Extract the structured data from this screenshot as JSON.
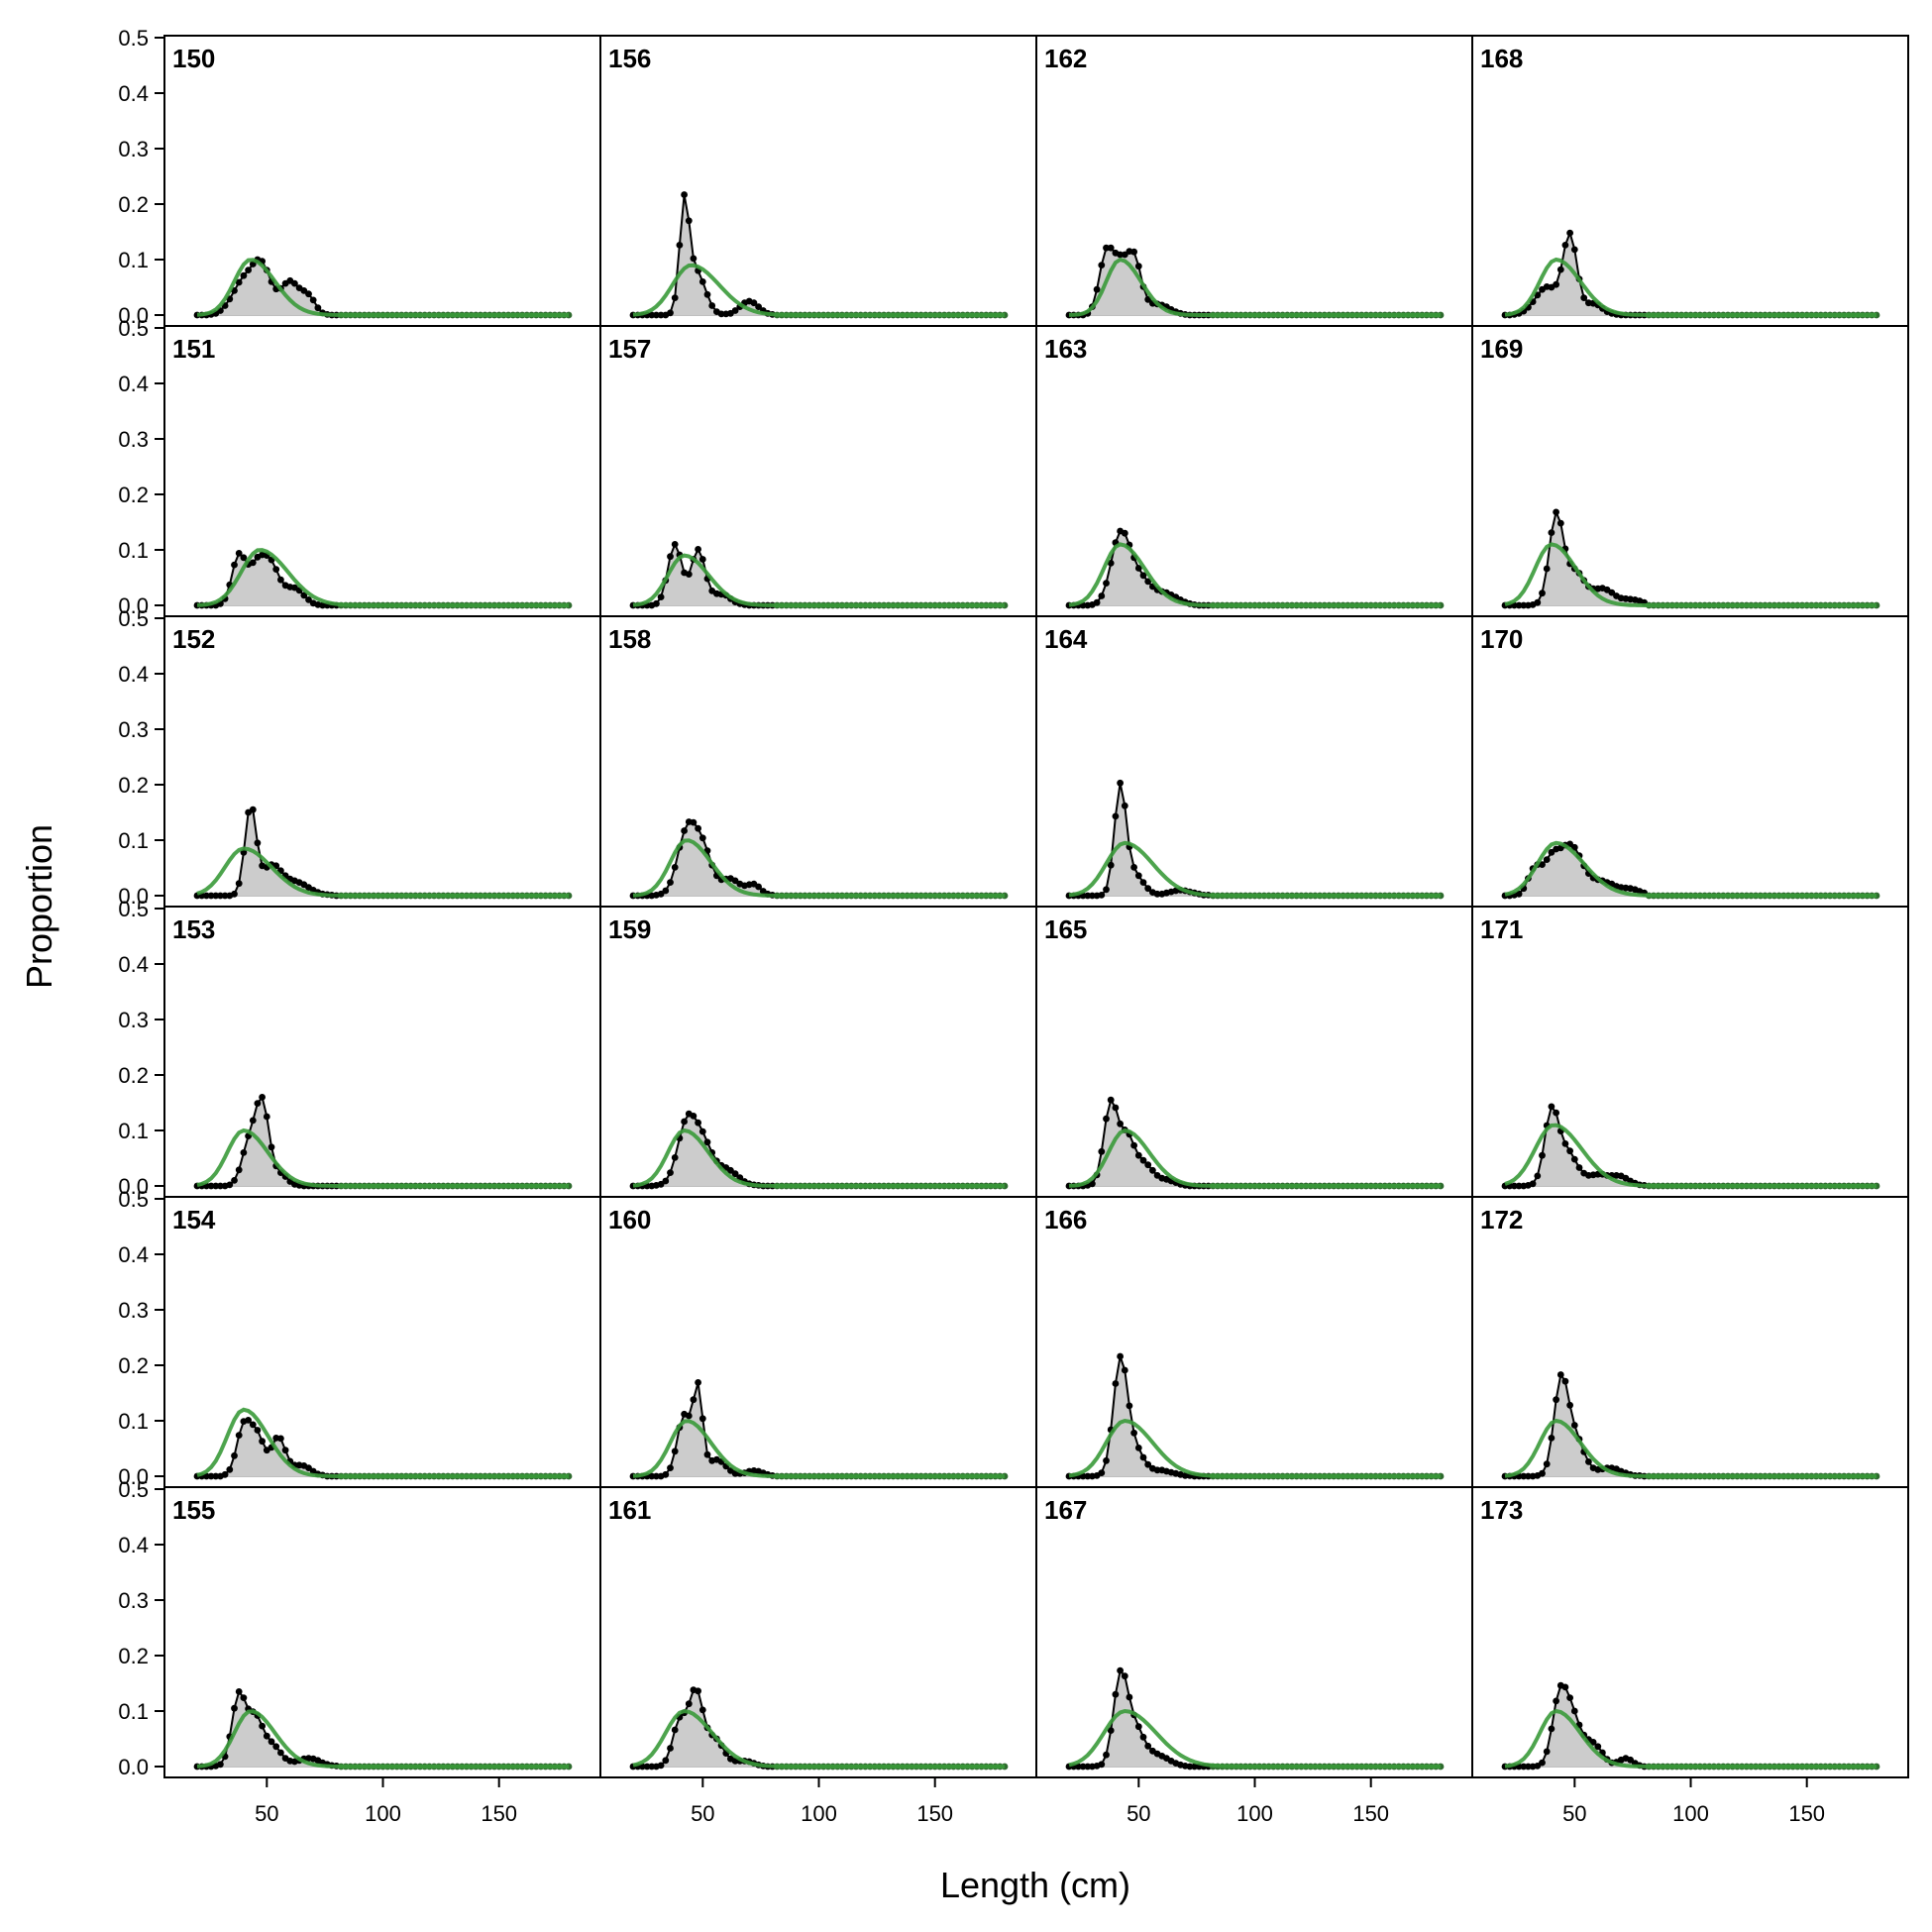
{
  "chart_data": {
    "type": "area",
    "xlabel": "Length (cm)",
    "ylabel": "Proportion",
    "xlim": [
      20,
      180
    ],
    "ylim": [
      0,
      0.5
    ],
    "x_ticks": [
      50,
      100,
      150
    ],
    "y_ticks": [
      "0.0",
      "0.1",
      "0.2",
      "0.3",
      "0.4",
      "0.5"
    ],
    "grid": false,
    "colors": {
      "observed_fill": "#cccccc",
      "observed_line": "#000000",
      "expected_line": "#3a9a3a",
      "zero_line": "#bfbfbf"
    },
    "length_bins": {
      "start": 20,
      "end": 180,
      "step": 2
    },
    "layout": {
      "rows": 6,
      "cols": 4,
      "order": "column-major"
    },
    "panels": [
      {
        "label": "150",
        "obs_peaks": [
          [
            40,
            0.06,
            5
          ],
          [
            48,
            0.08,
            4
          ],
          [
            60,
            0.06,
            4
          ],
          [
            68,
            0.03,
            3
          ]
        ],
        "exp": {
          "mean": 43,
          "sd": 7,
          "peak": 0.1
        }
      },
      {
        "label": "151",
        "obs_peaks": [
          [
            38,
            0.09,
            3
          ],
          [
            45,
            0.05,
            3
          ],
          [
            51,
            0.08,
            4
          ],
          [
            62,
            0.03,
            4
          ]
        ],
        "exp": {
          "mean": 47,
          "sd": 8,
          "peak": 0.1
        }
      },
      {
        "label": "152",
        "obs_peaks": [
          [
            43,
            0.16,
            2.5
          ],
          [
            52,
            0.05,
            4
          ],
          [
            62,
            0.025,
            6
          ]
        ],
        "exp": {
          "mean": 40,
          "sd": 8,
          "peak": 0.085
        }
      },
      {
        "label": "153",
        "obs_peaks": [
          [
            42,
            0.07,
            3
          ],
          [
            48,
            0.15,
            3
          ],
          [
            56,
            0.02,
            3
          ]
        ],
        "exp": {
          "mean": 40,
          "sd": 7,
          "peak": 0.1
        }
      },
      {
        "label": "154",
        "obs_peaks": [
          [
            40,
            0.09,
            3
          ],
          [
            46,
            0.07,
            3
          ],
          [
            55,
            0.07,
            3
          ],
          [
            65,
            0.02,
            4
          ]
        ],
        "exp": {
          "mean": 40,
          "sd": 7,
          "peak": 0.12
        }
      },
      {
        "label": "155",
        "obs_peaks": [
          [
            38,
            0.13,
            3
          ],
          [
            45,
            0.08,
            3
          ],
          [
            52,
            0.04,
            4
          ],
          [
            68,
            0.015,
            5
          ]
        ],
        "exp": {
          "mean": 43,
          "sd": 7,
          "peak": 0.1
        }
      },
      {
        "label": "156",
        "obs_peaks": [
          [
            42,
            0.18,
            2
          ],
          [
            47,
            0.08,
            4
          ],
          [
            70,
            0.025,
            4
          ]
        ],
        "exp": {
          "mean": 45,
          "sd": 8,
          "peak": 0.09
        }
      },
      {
        "label": "157",
        "obs_peaks": [
          [
            38,
            0.11,
            3
          ],
          [
            48,
            0.1,
            3
          ],
          [
            58,
            0.02,
            4
          ]
        ],
        "exp": {
          "mean": 42,
          "sd": 7,
          "peak": 0.09
        }
      },
      {
        "label": "158",
        "obs_peaks": [
          [
            43,
            0.11,
            4
          ],
          [
            50,
            0.08,
            4
          ],
          [
            62,
            0.03,
            4
          ],
          [
            72,
            0.02,
            3
          ]
        ],
        "exp": {
          "mean": 43,
          "sd": 7,
          "peak": 0.1
        }
      },
      {
        "label": "159",
        "obs_peaks": [
          [
            43,
            0.11,
            4
          ],
          [
            50,
            0.07,
            4
          ],
          [
            60,
            0.03,
            5
          ]
        ],
        "exp": {
          "mean": 42,
          "sd": 7,
          "peak": 0.1
        }
      },
      {
        "label": "160",
        "obs_peaks": [
          [
            42,
            0.11,
            3
          ],
          [
            48,
            0.15,
            2
          ],
          [
            56,
            0.03,
            4
          ],
          [
            72,
            0.01,
            4
          ]
        ],
        "exp": {
          "mean": 43,
          "sd": 7,
          "peak": 0.1
        }
      },
      {
        "label": "161",
        "obs_peaks": [
          [
            40,
            0.08,
            3
          ],
          [
            47,
            0.13,
            3
          ],
          [
            55,
            0.05,
            4
          ],
          [
            68,
            0.01,
            4
          ]
        ],
        "exp": {
          "mean": 42,
          "sd": 8,
          "peak": 0.1
        }
      },
      {
        "label": "162",
        "obs_peaks": [
          [
            36,
            0.11,
            3
          ],
          [
            42,
            0.08,
            3
          ],
          [
            48,
            0.1,
            3
          ],
          [
            58,
            0.02,
            5
          ]
        ],
        "exp": {
          "mean": 42,
          "sd": 6,
          "peak": 0.1
        }
      },
      {
        "label": "163",
        "obs_peaks": [
          [
            42,
            0.12,
            4
          ],
          [
            50,
            0.05,
            5
          ],
          [
            62,
            0.02,
            5
          ]
        ],
        "exp": {
          "mean": 42,
          "sd": 7,
          "peak": 0.11
        }
      },
      {
        "label": "164",
        "obs_peaks": [
          [
            42,
            0.19,
            2.5
          ],
          [
            48,
            0.04,
            4
          ],
          [
            68,
            0.01,
            5
          ]
        ],
        "exp": {
          "mean": 44,
          "sd": 8,
          "peak": 0.095
        }
      },
      {
        "label": "165",
        "obs_peaks": [
          [
            38,
            0.15,
            3
          ],
          [
            45,
            0.08,
            3
          ],
          [
            52,
            0.04,
            4
          ],
          [
            62,
            0.01,
            4
          ]
        ],
        "exp": {
          "mean": 44,
          "sd": 7,
          "peak": 0.1
        }
      },
      {
        "label": "166",
        "obs_peaks": [
          [
            42,
            0.2,
            3
          ],
          [
            48,
            0.05,
            4
          ],
          [
            60,
            0.01,
            5
          ]
        ],
        "exp": {
          "mean": 44,
          "sd": 8,
          "peak": 0.1
        }
      },
      {
        "label": "167",
        "obs_peaks": [
          [
            42,
            0.15,
            3
          ],
          [
            48,
            0.07,
            4
          ],
          [
            58,
            0.02,
            5
          ]
        ],
        "exp": {
          "mean": 44,
          "sd": 9,
          "peak": 0.1
        }
      },
      {
        "label": "168",
        "obs_peaks": [
          [
            38,
            0.05,
            5
          ],
          [
            48,
            0.14,
            3
          ],
          [
            58,
            0.02,
            4
          ]
        ],
        "exp": {
          "mean": 42,
          "sd": 7,
          "peak": 0.1
        }
      },
      {
        "label": "169",
        "obs_peaks": [
          [
            42,
            0.16,
            3
          ],
          [
            50,
            0.06,
            4
          ],
          [
            62,
            0.03,
            5
          ],
          [
            75,
            0.01,
            4
          ]
        ],
        "exp": {
          "mean": 40,
          "sd": 7,
          "peak": 0.11
        }
      },
      {
        "label": "170",
        "obs_peaks": [
          [
            33,
            0.05,
            3
          ],
          [
            40,
            0.05,
            3
          ],
          [
            48,
            0.09,
            5
          ],
          [
            62,
            0.025,
            6
          ],
          [
            75,
            0.01,
            4
          ]
        ],
        "exp": {
          "mean": 42,
          "sd": 8,
          "peak": 0.095
        }
      },
      {
        "label": "171",
        "obs_peaks": [
          [
            40,
            0.13,
            3
          ],
          [
            47,
            0.06,
            4
          ],
          [
            60,
            0.02,
            5
          ],
          [
            70,
            0.015,
            4
          ]
        ],
        "exp": {
          "mean": 41,
          "sd": 8,
          "peak": 0.11
        }
      },
      {
        "label": "172",
        "obs_peaks": [
          [
            44,
            0.16,
            3
          ],
          [
            50,
            0.07,
            4
          ],
          [
            65,
            0.015,
            5
          ]
        ],
        "exp": {
          "mean": 42,
          "sd": 7,
          "peak": 0.1
        }
      },
      {
        "label": "173",
        "obs_peaks": [
          [
            43,
            0.09,
            3
          ],
          [
            48,
            0.1,
            4
          ],
          [
            58,
            0.04,
            4
          ],
          [
            72,
            0.015,
            3
          ]
        ],
        "exp": {
          "mean": 42,
          "sd": 7,
          "peak": 0.1
        }
      }
    ]
  }
}
